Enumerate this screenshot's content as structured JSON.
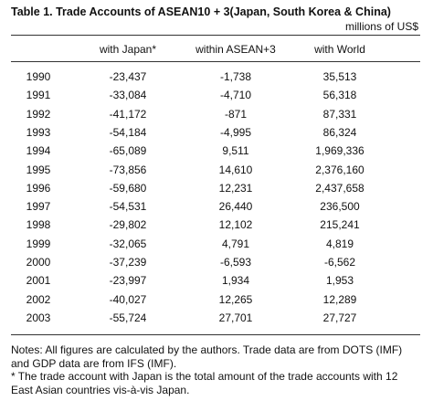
{
  "header": {
    "title": "Table 1. Trade Accounts of ASEAN10 + 3(Japan, South Korea & China)",
    "unit": "millions of US$"
  },
  "table": {
    "columns": [
      "",
      "with Japan*",
      "within ASEAN+3",
      "with World"
    ],
    "rows": [
      [
        "1990",
        "-23,437",
        "-1,738",
        "35,513"
      ],
      [
        "1991",
        "-33,084",
        "-4,710",
        "56,318"
      ],
      [
        "1992",
        "-41,172",
        "-871",
        "87,331"
      ],
      [
        "1993",
        "-54,184",
        "-4,995",
        "86,324"
      ],
      [
        "1994",
        "-65,089",
        "9,511",
        "1,969,336"
      ],
      [
        "1995",
        "-73,856",
        "14,610",
        "2,376,160"
      ],
      [
        "1996",
        "-59,680",
        "12,231",
        "2,437,658"
      ],
      [
        "1997",
        "-54,531",
        "26,440",
        "236,500"
      ],
      [
        "1998",
        "-29,802",
        "12,102",
        "215,241"
      ],
      [
        "1999",
        "-32,065",
        "4,791",
        "4,819"
      ],
      [
        "2000",
        "-37,239",
        "-6,593",
        "-6,562"
      ],
      [
        "2001",
        "-23,997",
        "1,934",
        "1,953"
      ],
      [
        "2002",
        "-40,027",
        "12,265",
        "12,289"
      ],
      [
        "2003",
        "-55,724",
        "27,701",
        "27,727"
      ]
    ]
  },
  "notes": [
    "Notes:  All figures are calculated by the authors. Trade data are from DOTS (IMF) and GDP data are from IFS (IMF).",
    "* The trade account with Japan is the total amount of the trade accounts with 12 East Asian countries vis-à-vis Japan."
  ]
}
